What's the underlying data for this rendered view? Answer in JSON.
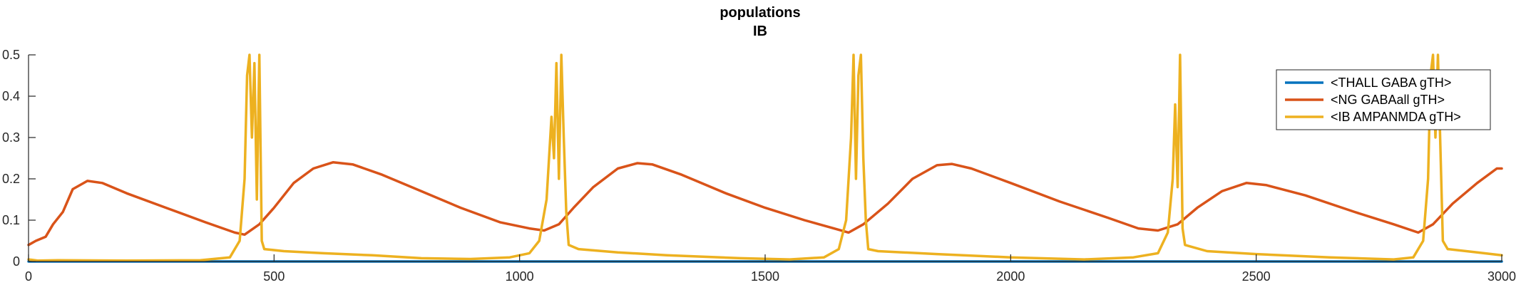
{
  "chart_data": {
    "type": "line",
    "title": [
      "populations",
      "IB"
    ],
    "xlabel": "",
    "ylabel": "",
    "xlim": [
      0,
      3000
    ],
    "ylim": [
      0,
      0.5
    ],
    "x_ticks": [
      0,
      500,
      1000,
      1500,
      2000,
      2500,
      3000
    ],
    "y_ticks": [
      0,
      0.1,
      0.2,
      0.3,
      0.4,
      0.5
    ],
    "y_tick_labels": [
      "0",
      "0.1",
      "0.2",
      "0.3",
      "0.4",
      "0.5"
    ],
    "grid": false,
    "legend_position": "top-right",
    "series": [
      {
        "name": "<THALL GABA gTH>",
        "color": "#0072BD",
        "points": [
          [
            0,
            0
          ],
          [
            3000,
            0
          ]
        ]
      },
      {
        "name": "<NG GABAall gTH>",
        "color": "#D95319",
        "points": [
          [
            0,
            0.04
          ],
          [
            15,
            0.05
          ],
          [
            35,
            0.06
          ],
          [
            50,
            0.09
          ],
          [
            70,
            0.12
          ],
          [
            90,
            0.175
          ],
          [
            120,
            0.195
          ],
          [
            150,
            0.19
          ],
          [
            200,
            0.165
          ],
          [
            280,
            0.13
          ],
          [
            360,
            0.095
          ],
          [
            420,
            0.07
          ],
          [
            440,
            0.065
          ],
          [
            470,
            0.09
          ],
          [
            500,
            0.13
          ],
          [
            540,
            0.19
          ],
          [
            580,
            0.225
          ],
          [
            620,
            0.24
          ],
          [
            660,
            0.235
          ],
          [
            720,
            0.21
          ],
          [
            800,
            0.17
          ],
          [
            880,
            0.13
          ],
          [
            960,
            0.095
          ],
          [
            1020,
            0.08
          ],
          [
            1050,
            0.075
          ],
          [
            1080,
            0.09
          ],
          [
            1110,
            0.13
          ],
          [
            1150,
            0.18
          ],
          [
            1200,
            0.225
          ],
          [
            1240,
            0.238
          ],
          [
            1270,
            0.235
          ],
          [
            1330,
            0.21
          ],
          [
            1420,
            0.165
          ],
          [
            1500,
            0.13
          ],
          [
            1580,
            0.1
          ],
          [
            1640,
            0.08
          ],
          [
            1670,
            0.07
          ],
          [
            1700,
            0.09
          ],
          [
            1750,
            0.14
          ],
          [
            1800,
            0.2
          ],
          [
            1850,
            0.233
          ],
          [
            1880,
            0.236
          ],
          [
            1920,
            0.225
          ],
          [
            2000,
            0.19
          ],
          [
            2100,
            0.145
          ],
          [
            2200,
            0.105
          ],
          [
            2260,
            0.08
          ],
          [
            2300,
            0.075
          ],
          [
            2340,
            0.09
          ],
          [
            2380,
            0.13
          ],
          [
            2430,
            0.17
          ],
          [
            2480,
            0.19
          ],
          [
            2520,
            0.185
          ],
          [
            2600,
            0.16
          ],
          [
            2700,
            0.12
          ],
          [
            2780,
            0.09
          ],
          [
            2830,
            0.07
          ],
          [
            2860,
            0.09
          ],
          [
            2900,
            0.14
          ],
          [
            2950,
            0.19
          ],
          [
            2990,
            0.225
          ],
          [
            3000,
            0.225
          ]
        ]
      },
      {
        "name": "<IB AMPANMDA gTH>",
        "color": "#EDB120",
        "points": [
          [
            0,
            0.005
          ],
          [
            20,
            0.002
          ],
          [
            60,
            0.003
          ],
          [
            200,
            0.002
          ],
          [
            350,
            0.003
          ],
          [
            410,
            0.01
          ],
          [
            430,
            0.05
          ],
          [
            440,
            0.2
          ],
          [
            445,
            0.45
          ],
          [
            450,
            0.5
          ],
          [
            455,
            0.3
          ],
          [
            460,
            0.48
          ],
          [
            465,
            0.15
          ],
          [
            470,
            0.5
          ],
          [
            475,
            0.05
          ],
          [
            480,
            0.03
          ],
          [
            520,
            0.025
          ],
          [
            600,
            0.02
          ],
          [
            700,
            0.015
          ],
          [
            800,
            0.008
          ],
          [
            900,
            0.006
          ],
          [
            980,
            0.01
          ],
          [
            1020,
            0.02
          ],
          [
            1040,
            0.05
          ],
          [
            1055,
            0.15
          ],
          [
            1065,
            0.35
          ],
          [
            1070,
            0.25
          ],
          [
            1075,
            0.48
          ],
          [
            1080,
            0.2
          ],
          [
            1085,
            0.5
          ],
          [
            1090,
            0.3
          ],
          [
            1095,
            0.12
          ],
          [
            1100,
            0.04
          ],
          [
            1120,
            0.03
          ],
          [
            1200,
            0.022
          ],
          [
            1300,
            0.015
          ],
          [
            1450,
            0.008
          ],
          [
            1550,
            0.005
          ],
          [
            1620,
            0.01
          ],
          [
            1650,
            0.03
          ],
          [
            1665,
            0.1
          ],
          [
            1675,
            0.3
          ],
          [
            1680,
            0.5
          ],
          [
            1685,
            0.2
          ],
          [
            1690,
            0.45
          ],
          [
            1695,
            0.5
          ],
          [
            1700,
            0.25
          ],
          [
            1705,
            0.1
          ],
          [
            1710,
            0.03
          ],
          [
            1730,
            0.025
          ],
          [
            1850,
            0.018
          ],
          [
            2000,
            0.01
          ],
          [
            2150,
            0.005
          ],
          [
            2250,
            0.01
          ],
          [
            2300,
            0.02
          ],
          [
            2320,
            0.07
          ],
          [
            2330,
            0.2
          ],
          [
            2335,
            0.38
          ],
          [
            2340,
            0.18
          ],
          [
            2345,
            0.5
          ],
          [
            2350,
            0.08
          ],
          [
            2355,
            0.04
          ],
          [
            2400,
            0.025
          ],
          [
            2500,
            0.018
          ],
          [
            2650,
            0.01
          ],
          [
            2780,
            0.005
          ],
          [
            2820,
            0.01
          ],
          [
            2840,
            0.05
          ],
          [
            2850,
            0.2
          ],
          [
            2855,
            0.45
          ],
          [
            2860,
            0.5
          ],
          [
            2865,
            0.3
          ],
          [
            2870,
            0.5
          ],
          [
            2875,
            0.28
          ],
          [
            2880,
            0.05
          ],
          [
            2890,
            0.03
          ],
          [
            2950,
            0.022
          ],
          [
            3000,
            0.015
          ]
        ]
      }
    ]
  }
}
